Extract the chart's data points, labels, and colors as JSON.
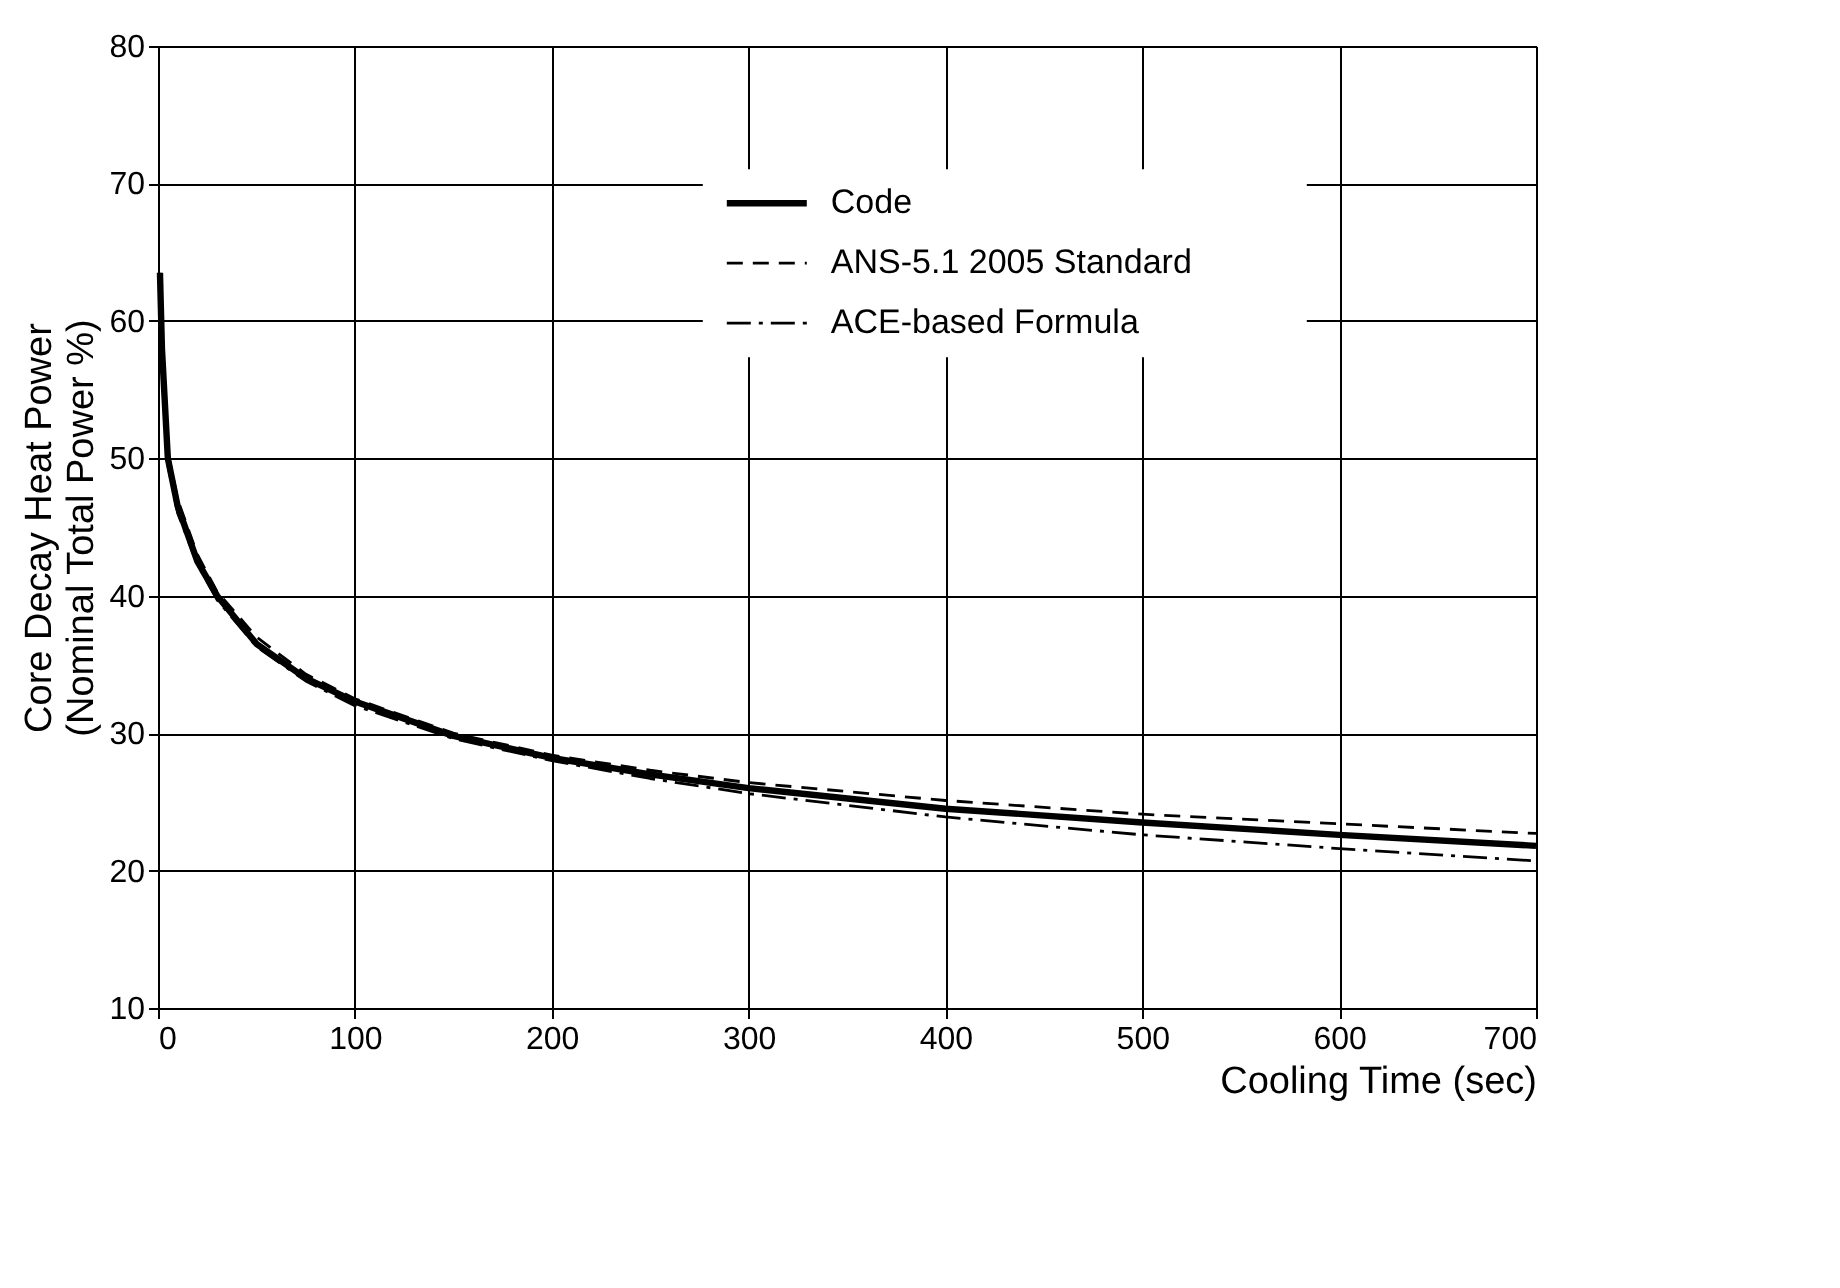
{
  "chart_data": {
    "type": "line",
    "xlabel": "Cooling Time (sec)",
    "ylabel": "Core Decay Heat Power\n(Nominal Total Power %)",
    "x": [
      1,
      2,
      5,
      10,
      20,
      30,
      50,
      75,
      100,
      150,
      200,
      250,
      300,
      400,
      500,
      600,
      700
    ],
    "series": [
      {
        "name": "Code",
        "color": "#000000",
        "line_style": "solid",
        "values": [
          63.5,
          58,
          50,
          46.5,
          42.5,
          40,
          36.5,
          34,
          32.3,
          29.8,
          28.2,
          27,
          26,
          24.5,
          23.5,
          22.6,
          21.8
        ]
      },
      {
        "name": "ANS-5.1 2005 Standard",
        "color": "#000000",
        "line_style": "dashed",
        "values": [
          63.5,
          58,
          50.5,
          47,
          43,
          40.3,
          37,
          34.3,
          32.5,
          30,
          28.4,
          27.3,
          26.4,
          25.1,
          24.1,
          23.4,
          22.7
        ]
      },
      {
        "name": "ACE-based Formula",
        "color": "#000000",
        "line_style": "dashdot",
        "values": [
          63,
          57.5,
          49.5,
          46,
          42.3,
          39.7,
          36.3,
          33.8,
          32,
          29.6,
          28,
          26.7,
          25.6,
          23.9,
          22.6,
          21.6,
          20.7
        ]
      }
    ],
    "xlim": [
      0,
      700
    ],
    "xticks": [
      0,
      100,
      200,
      300,
      400,
      500,
      600,
      700
    ],
    "ylim": [
      10,
      80
    ],
    "yticks": [
      10,
      20,
      30,
      40,
      50,
      60,
      70,
      80
    ],
    "grid": true,
    "legend": "top",
    "marker": "none"
  }
}
